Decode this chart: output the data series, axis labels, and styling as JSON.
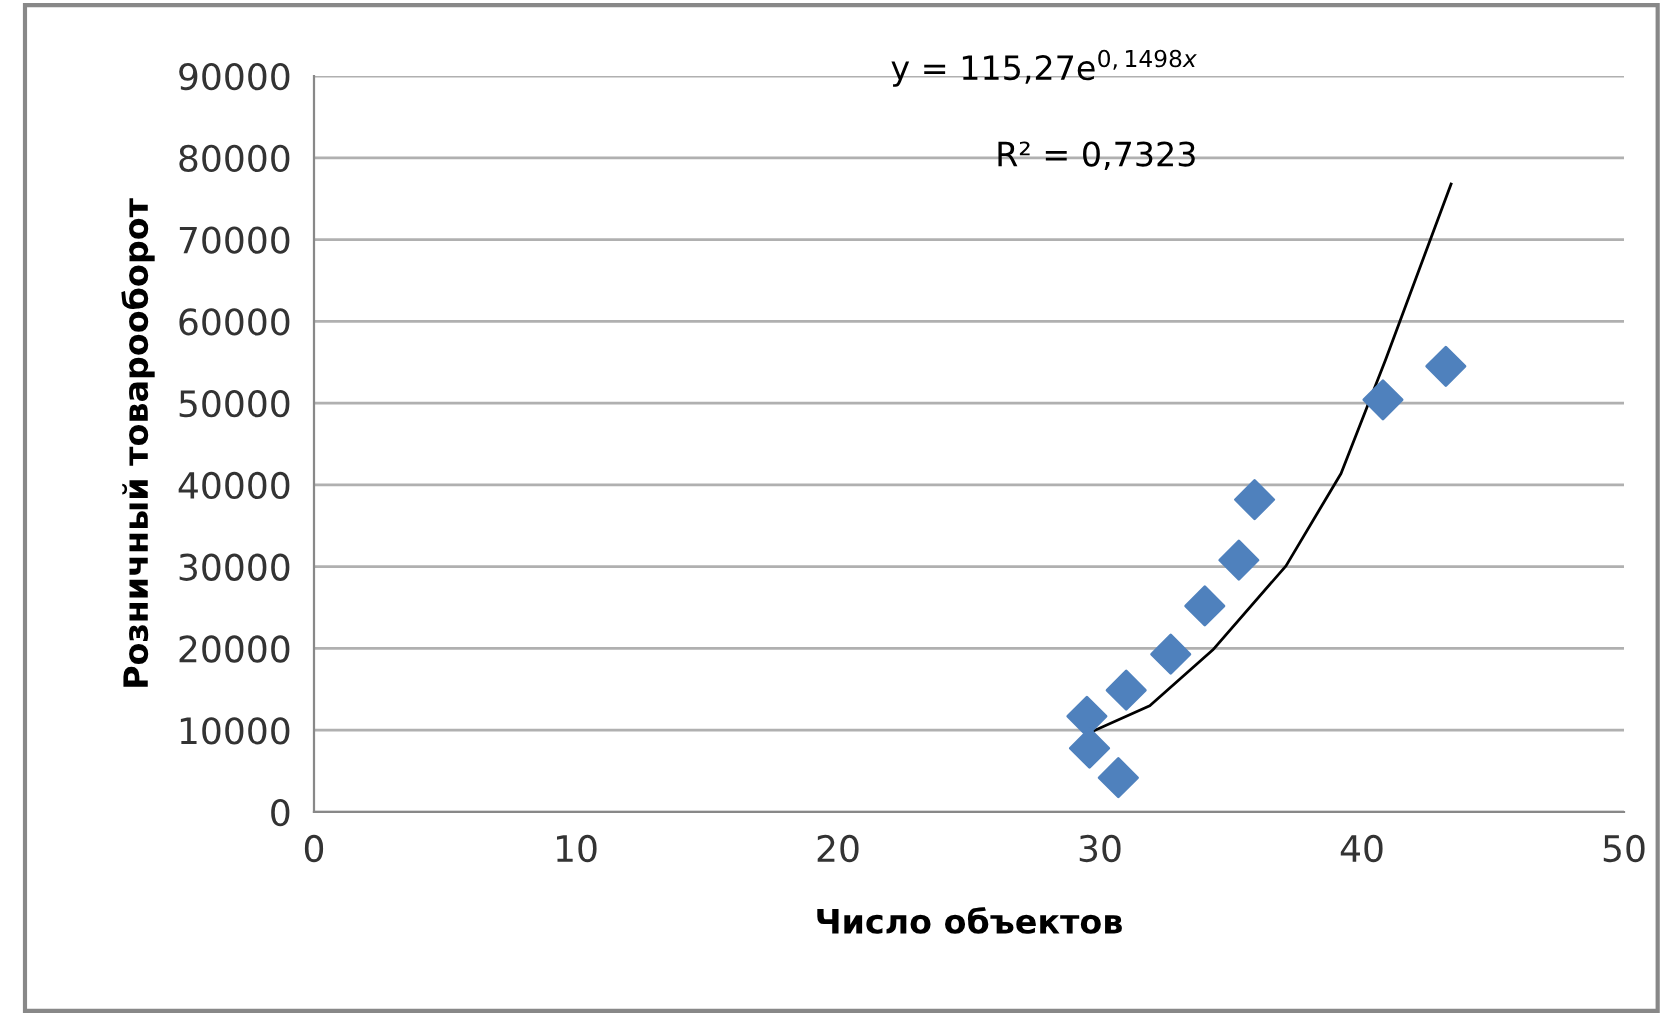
{
  "chart_data": {
    "type": "scatter",
    "xlabel": "Число объектов",
    "ylabel": "Розничный товарооборот",
    "xlim": [
      0,
      50
    ],
    "xticks": [
      0,
      10,
      20,
      30,
      40,
      50
    ],
    "ylim": [
      0,
      90000
    ],
    "yticks": [
      0,
      10000,
      20000,
      30000,
      40000,
      50000,
      60000,
      70000,
      80000,
      90000
    ],
    "grid": "y",
    "legend": false,
    "marker": "diamond",
    "annotations": [
      "y = 115,27e$^{0,1498x}$",
      "R² = 0,7323"
    ],
    "series": [
      {
        "color": "#4f81bd",
        "x": [
          29.5,
          29.6,
          30.7,
          31.0,
          32.7,
          34.0,
          35.3,
          35.9,
          40.8,
          43.2
        ],
        "values": [
          11700,
          7800,
          4200,
          14900,
          19300,
          25200,
          30800,
          38200,
          50400,
          54500
        ]
      },
      {
        "type": "line",
        "color": "#000000",
        "marker": "none",
        "line_style": "solid",
        "x": [
          29.6,
          31.9,
          34.3,
          37.1,
          39.2,
          40.9,
          43.4
        ],
        "values": [
          9700,
          13000,
          19800,
          30100,
          41400,
          55300,
          76800
        ]
      }
    ]
  }
}
